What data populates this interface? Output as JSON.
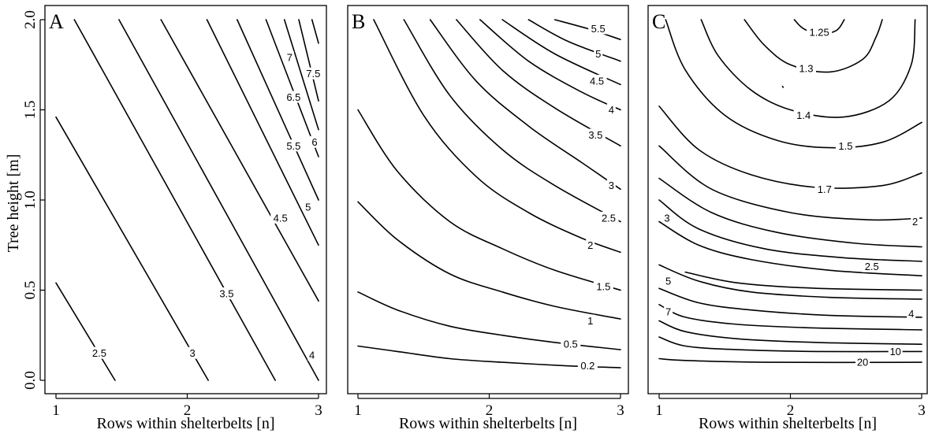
{
  "figure": {
    "y_axis_label": "Tree height [m]",
    "x_axis_label": "Rows within shelterbelts [n]"
  },
  "chart_data": [
    {
      "type": "contour",
      "panel_letter": "A",
      "xlabel": "Rows within shelterbelts [n]",
      "ylabel": "Tree height [m]",
      "xlim": [
        1,
        3
      ],
      "ylim": [
        0,
        2
      ],
      "x_ticks": [
        "1",
        "2",
        "3"
      ],
      "y_ticks": [
        "0.0",
        "0.5",
        "1.0",
        "1.5",
        "2.0"
      ],
      "levels": [
        {
          "label": "2.5",
          "points": [
            [
              1.0,
              0.54
            ],
            [
              1.45,
              0.0
            ]
          ],
          "label_at": [
            1.33,
            0.15
          ]
        },
        {
          "label": "3",
          "points": [
            [
              1.0,
              1.46
            ],
            [
              2.16,
              0.0
            ]
          ],
          "label_at": [
            2.04,
            0.15
          ]
        },
        {
          "label": "3.5",
          "points": [
            [
              1.14,
              2.0
            ],
            [
              2.67,
              0.0
            ]
          ],
          "label_at": [
            2.3,
            0.48
          ]
        },
        {
          "label": "4",
          "points": [
            [
              1.48,
              2.0
            ],
            [
              3.0,
              0.0
            ]
          ],
          "label_at": [
            2.95,
            0.14
          ]
        },
        {
          "label": "4.5",
          "points": [
            [
              1.8,
              2.0
            ],
            [
              3.0,
              0.44
            ]
          ],
          "label_at": [
            2.71,
            0.9
          ]
        },
        {
          "label": "5",
          "points": [
            [
              2.15,
              2.0
            ],
            [
              3.0,
              0.75
            ]
          ],
          "label_at": [
            2.92,
            0.96
          ]
        },
        {
          "label": "5.5",
          "points": [
            [
              2.38,
              2.0
            ],
            [
              3.0,
              1.0
            ]
          ],
          "label_at": [
            2.81,
            1.3
          ]
        },
        {
          "label": "6",
          "points": [
            [
              2.6,
              2.0
            ],
            [
              3.0,
              1.24
            ]
          ],
          "label_at": [
            2.97,
            1.32
          ]
        },
        {
          "label": "6.5",
          "points": [
            [
              2.74,
              2.0
            ],
            [
              3.0,
              1.39
            ]
          ],
          "label_at": [
            2.81,
            1.57
          ]
        },
        {
          "label": "7",
          "points": [
            [
              2.85,
              2.0
            ],
            [
              3.0,
              1.55
            ]
          ],
          "label_at": [
            2.78,
            1.79
          ]
        },
        {
          "label": "7.5",
          "points": [
            [
              2.95,
              2.0
            ],
            [
              3.0,
              1.87
            ]
          ],
          "label_at": [
            2.96,
            1.7
          ]
        }
      ]
    },
    {
      "type": "contour",
      "panel_letter": "B",
      "xlabel": "Rows within shelterbelts [n]",
      "ylabel": "",
      "xlim": [
        1,
        3
      ],
      "ylim": [
        0,
        2
      ],
      "x_ticks": [
        "1",
        "2",
        "3"
      ],
      "y_ticks": [],
      "levels": [
        {
          "label": "0.2",
          "points": [
            [
              1.0,
              0.19
            ],
            [
              1.3,
              0.16
            ],
            [
              1.7,
              0.12
            ],
            [
              2.1,
              0.1
            ],
            [
              2.6,
              0.08
            ],
            [
              3.0,
              0.07
            ]
          ],
          "label_at": [
            2.75,
            0.08
          ]
        },
        {
          "label": "0.5",
          "points": [
            [
              1.0,
              0.49
            ],
            [
              1.3,
              0.39
            ],
            [
              1.7,
              0.3
            ],
            [
              2.1,
              0.25
            ],
            [
              2.5,
              0.21
            ],
            [
              3.0,
              0.17
            ]
          ],
          "label_at": [
            2.62,
            0.2
          ]
        },
        {
          "label": "1",
          "points": [
            [
              1.0,
              0.99
            ],
            [
              1.3,
              0.78
            ],
            [
              1.7,
              0.59
            ],
            [
              2.1,
              0.49
            ],
            [
              2.5,
              0.41
            ],
            [
              3.0,
              0.34
            ]
          ],
          "label_at": [
            2.77,
            0.33
          ]
        },
        {
          "label": "1.5",
          "points": [
            [
              1.0,
              1.5
            ],
            [
              1.3,
              1.16
            ],
            [
              1.7,
              0.88
            ],
            [
              2.1,
              0.73
            ],
            [
              2.5,
              0.61
            ],
            [
              3.0,
              0.5
            ]
          ],
          "label_at": [
            2.87,
            0.52
          ]
        },
        {
          "label": "2",
          "points": [
            [
              1.12,
              2.0
            ],
            [
              1.5,
              1.47
            ],
            [
              1.9,
              1.13
            ],
            [
              2.3,
              0.93
            ],
            [
              2.7,
              0.79
            ],
            [
              3.0,
              0.71
            ]
          ],
          "label_at": [
            2.77,
            0.75
          ]
        },
        {
          "label": "2.5",
          "points": [
            [
              1.35,
              2.0
            ],
            [
              1.7,
              1.58
            ],
            [
              2.1,
              1.28
            ],
            [
              2.5,
              1.08
            ],
            [
              3.0,
              0.88
            ]
          ],
          "label_at": [
            2.91,
            0.9
          ]
        },
        {
          "label": "3",
          "points": [
            [
              1.55,
              2.0
            ],
            [
              1.9,
              1.66
            ],
            [
              2.3,
              1.41
            ],
            [
              2.7,
              1.21
            ],
            [
              3.0,
              1.06
            ]
          ],
          "label_at": [
            2.93,
            1.08
          ]
        },
        {
          "label": "3.5",
          "points": [
            [
              1.75,
              2.0
            ],
            [
              2.1,
              1.72
            ],
            [
              2.5,
              1.51
            ],
            [
              3.0,
              1.3
            ]
          ],
          "label_at": [
            2.81,
            1.36
          ]
        },
        {
          "label": "4",
          "points": [
            [
              1.93,
              2.0
            ],
            [
              2.3,
              1.77
            ],
            [
              2.7,
              1.6
            ],
            [
              3.0,
              1.5
            ]
          ],
          "label_at": [
            2.93,
            1.5
          ]
        },
        {
          "label": "4.5",
          "points": [
            [
              2.1,
              2.0
            ],
            [
              2.5,
              1.81
            ],
            [
              3.0,
              1.64
            ]
          ],
          "label_at": [
            2.82,
            1.66
          ]
        },
        {
          "label": "5",
          "points": [
            [
              2.3,
              2.0
            ],
            [
              2.6,
              1.88
            ],
            [
              3.0,
              1.77
            ]
          ],
          "label_at": [
            2.83,
            1.81
          ]
        },
        {
          "label": "5.5",
          "points": [
            [
              2.5,
              2.0
            ],
            [
              2.75,
              1.95
            ],
            [
              3.0,
              1.89
            ]
          ],
          "label_at": [
            2.83,
            1.95
          ]
        }
      ]
    },
    {
      "type": "contour",
      "panel_letter": "C",
      "xlabel": "Rows within shelterbelts [n]",
      "ylabel": "",
      "xlim": [
        1,
        3
      ],
      "ylim": [
        0,
        2
      ],
      "x_ticks": [
        "1",
        "2",
        "3"
      ],
      "y_ticks": [],
      "levels": [
        {
          "label": "20",
          "points": [
            [
              1.0,
              0.12
            ],
            [
              1.2,
              0.11
            ],
            [
              1.8,
              0.1
            ],
            [
              3.0,
              0.1
            ]
          ],
          "label_at": [
            2.55,
            0.1
          ]
        },
        {
          "label": "10",
          "points": [
            [
              1.0,
              0.24
            ],
            [
              1.2,
              0.19
            ],
            [
              1.6,
              0.17
            ],
            [
              2.2,
              0.16
            ],
            [
              3.0,
              0.16
            ]
          ],
          "label_at": [
            2.8,
            0.16
          ]
        },
        {
          "label": "",
          "points": [
            [
              1.0,
              0.33
            ],
            [
              1.2,
              0.27
            ],
            [
              1.6,
              0.23
            ],
            [
              2.2,
              0.21
            ],
            [
              3.0,
              0.2
            ]
          ],
          "label_at": null
        },
        {
          "label": "7",
          "points": [
            [
              1.0,
              0.42
            ],
            [
              1.2,
              0.35
            ],
            [
              1.6,
              0.31
            ],
            [
              2.2,
              0.29
            ],
            [
              3.0,
              0.28
            ]
          ],
          "label_at": [
            1.07,
            0.38
          ]
        },
        {
          "label": "",
          "points": [
            [
              1.0,
              0.51
            ],
            [
              1.3,
              0.43
            ],
            [
              1.7,
              0.39
            ],
            [
              2.3,
              0.36
            ],
            [
              3.0,
              0.35
            ]
          ],
          "label_at": null
        },
        {
          "label": "5",
          "points": [
            [
              1.0,
              0.64
            ],
            [
              1.3,
              0.55
            ],
            [
              1.7,
              0.49
            ],
            [
              2.3,
              0.46
            ],
            [
              3.0,
              0.45
            ]
          ],
          "label_at": [
            1.07,
            0.55
          ]
        },
        {
          "label": "4",
          "points": [
            [
              1.2,
              0.6
            ],
            [
              1.6,
              0.54
            ],
            [
              2.2,
              0.51
            ],
            [
              3.0,
              0.5
            ]
          ],
          "label_at": [
            2.92,
            0.37
          ]
        },
        {
          "label": "",
          "points": [
            [
              1.0,
              0.88
            ],
            [
              1.3,
              0.75
            ],
            [
              1.7,
              0.67
            ],
            [
              2.3,
              0.61
            ],
            [
              3.0,
              0.58
            ]
          ],
          "label_at": null
        },
        {
          "label": "3",
          "points": [
            [
              1.0,
              1.0
            ],
            [
              1.3,
              0.84
            ],
            [
              1.8,
              0.73
            ],
            [
              2.4,
              0.68
            ],
            [
              3.0,
              0.66
            ]
          ],
          "label_at": [
            1.06,
            0.9
          ]
        },
        {
          "label": "2.5",
          "points": [
            [
              1.0,
              1.12
            ],
            [
              1.4,
              0.93
            ],
            [
              1.9,
              0.82
            ],
            [
              2.5,
              0.76
            ],
            [
              3.0,
              0.74
            ]
          ],
          "label_at": [
            2.62,
            0.63
          ]
        },
        {
          "label": "2",
          "points": [
            [
              1.0,
              1.3
            ],
            [
              1.4,
              1.06
            ],
            [
              2.0,
              0.93
            ],
            [
              2.6,
              0.89
            ],
            [
              3.0,
              0.9
            ]
          ],
          "label_at": [
            2.95,
            0.88
          ]
        },
        {
          "label": "1.7",
          "points": [
            [
              1.0,
              1.52
            ],
            [
              1.3,
              1.28
            ],
            [
              1.7,
              1.14
            ],
            [
              2.2,
              1.07
            ],
            [
              2.7,
              1.08
            ],
            [
              3.0,
              1.15
            ]
          ],
          "label_at": [
            2.26,
            1.06
          ]
        },
        {
          "label": "1.5",
          "points": [
            [
              1.05,
              2.0
            ],
            [
              1.2,
              1.72
            ],
            [
              1.5,
              1.47
            ],
            [
              1.9,
              1.33
            ],
            [
              2.3,
              1.29
            ],
            [
              2.7,
              1.32
            ],
            [
              3.0,
              1.43
            ]
          ],
          "label_at": [
            2.42,
            1.3
          ]
        },
        {
          "label": "1.4",
          "points": [
            [
              1.32,
              2.0
            ],
            [
              1.45,
              1.8
            ],
            [
              1.7,
              1.61
            ],
            [
              2.0,
              1.5
            ],
            [
              2.4,
              1.46
            ],
            [
              2.75,
              1.55
            ],
            [
              2.92,
              1.75
            ],
            [
              2.95,
              2.0
            ]
          ],
          "label_at": [
            2.1,
            1.47
          ]
        },
        {
          "label": "1.3",
          "points": [
            [
              1.65,
              2.0
            ],
            [
              1.8,
              1.86
            ],
            [
              2.0,
              1.75
            ],
            [
              2.3,
              1.71
            ],
            [
              2.55,
              1.78
            ],
            [
              2.65,
              1.9
            ],
            [
              2.7,
              2.0
            ]
          ],
          "label_at": [
            2.12,
            1.73
          ]
        },
        {
          "label": "1.25",
          "points": [
            [
              2.03,
              2.0
            ],
            [
              2.1,
              1.95
            ],
            [
              2.22,
              1.92
            ],
            [
              2.35,
              1.94
            ],
            [
              2.41,
              2.0
            ]
          ],
          "label_at": [
            2.22,
            1.93
          ]
        },
        {
          "label": "",
          "points": [
            [
              1.94,
              1.63
            ],
            [
              1.945,
              1.625
            ]
          ],
          "label_at": null
        }
      ]
    }
  ]
}
